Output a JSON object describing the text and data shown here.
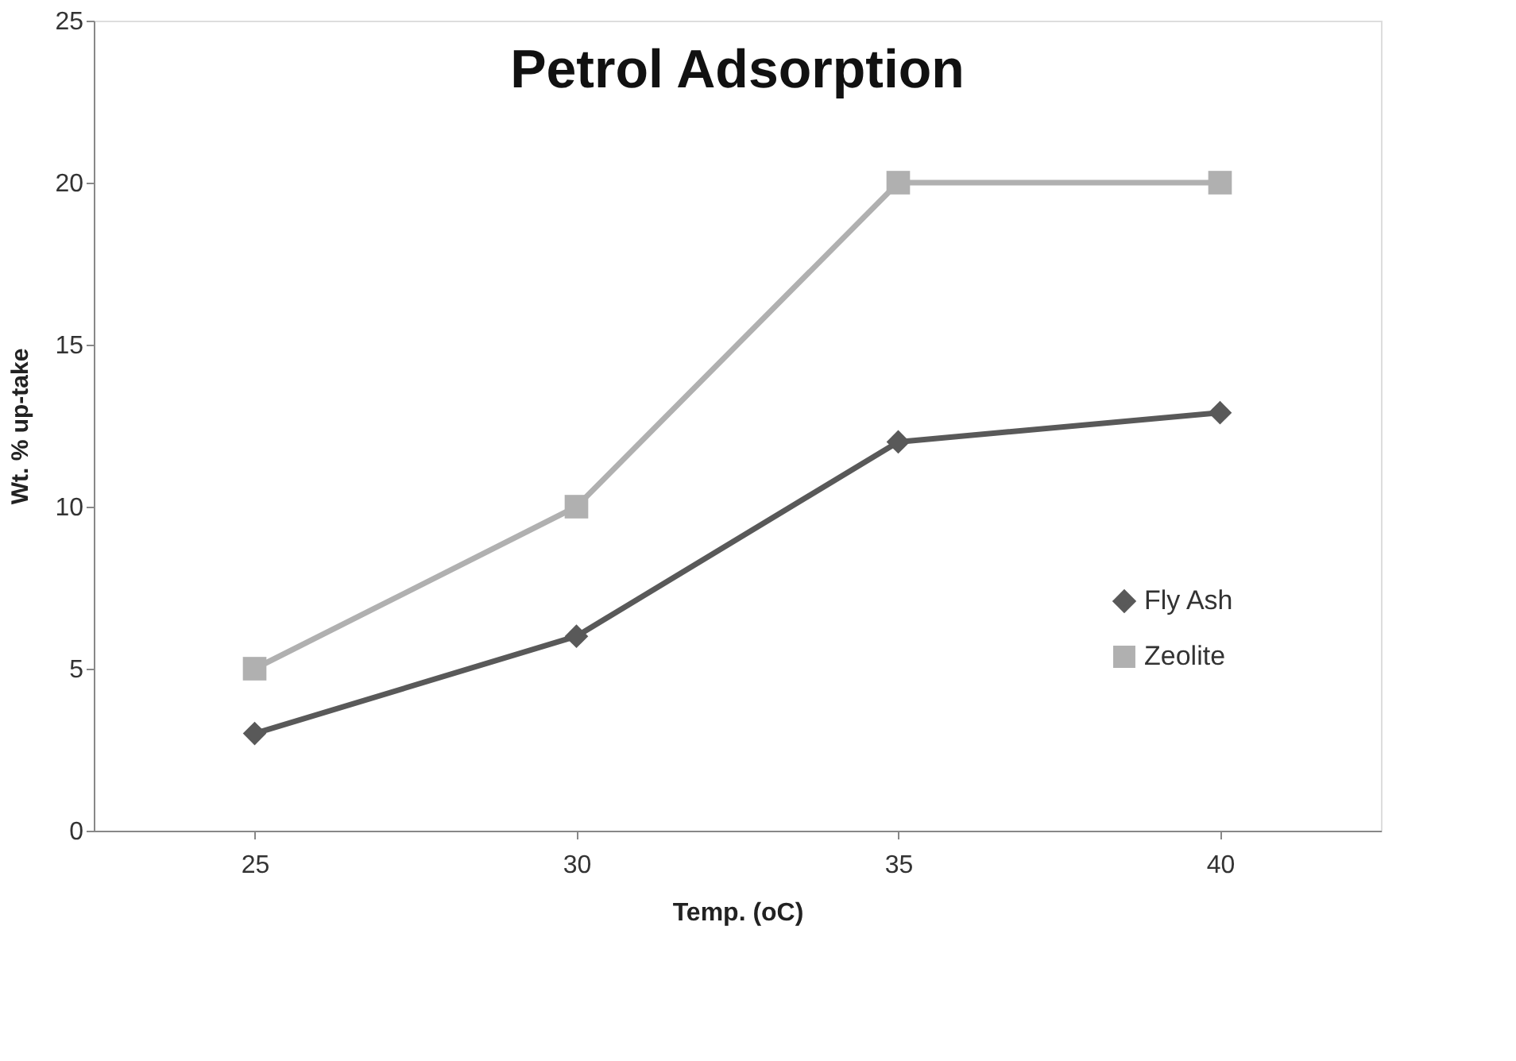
{
  "chart_data": {
    "type": "line",
    "title": "Petrol Adsorption",
    "xlabel": "Temp. (oC)",
    "ylabel": "Wt. % up-take",
    "categories": [
      "25",
      "30",
      "35",
      "40"
    ],
    "series": [
      {
        "name": "Fly Ash",
        "color": "#595959",
        "marker": "diamond",
        "values": [
          3,
          6,
          12,
          12.9
        ]
      },
      {
        "name": "Zeolite",
        "color": "#b0b0b0",
        "marker": "square",
        "values": [
          5,
          10,
          20,
          20
        ]
      }
    ],
    "ylim": [
      0,
      25
    ],
    "yticks": [
      0,
      5,
      10,
      15,
      20,
      25
    ],
    "grid": false,
    "legend": "right",
    "line_style": "solid"
  }
}
